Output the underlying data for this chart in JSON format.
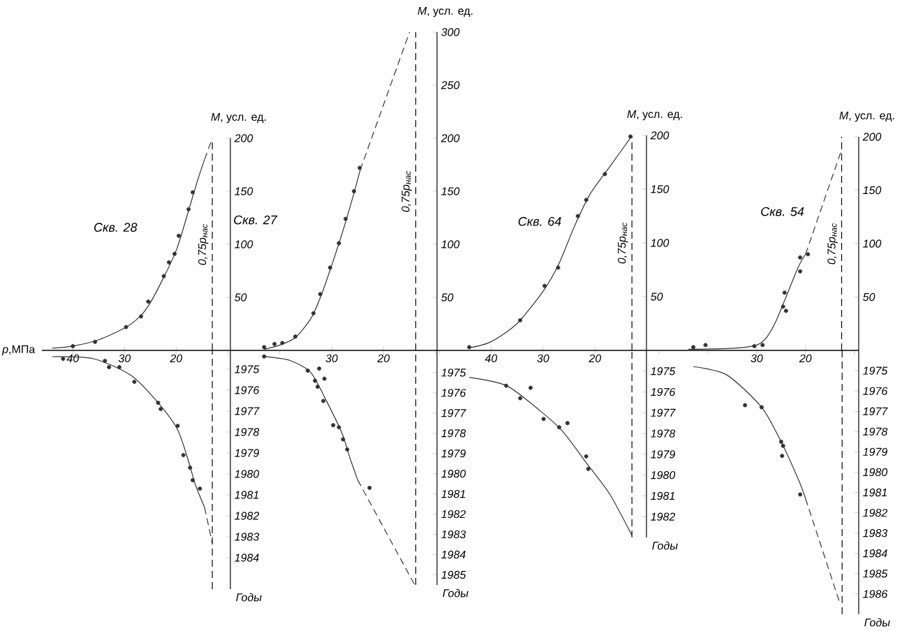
{
  "chart_data": [
    {
      "type": "line",
      "title": "Скв. 28",
      "xlabel": "*p*,МПа",
      "ylabel": "*M*, усл. ед.",
      "xlim": [
        46,
        9.5
      ],
      "xticks": [
        40,
        30,
        20
      ],
      "ylim": [
        0,
        200
      ],
      "yticks": [
        50,
        100,
        150,
        200
      ],
      "ref_lines": [
        {
          "axis": "x",
          "value": 13,
          "label": "0,75p$_{нас}$",
          "line_style": "dashed"
        }
      ],
      "series": [
        {
          "type": "scatter",
          "marker": "circle",
          "color": "#333333",
          "x": [
            40,
            35.7,
            29.7,
            26.8,
            25.4,
            22.4,
            21.4,
            20.3,
            19.5,
            17.6,
            16.8
          ],
          "values": [
            4,
            8,
            22,
            32,
            46,
            70,
            83,
            91,
            108,
            133,
            149
          ]
        },
        {
          "type": "line",
          "color": "#333333",
          "x": [
            44,
            40,
            35,
            30,
            27,
            25,
            22.5,
            20,
            18,
            16,
            14.5
          ],
          "values": [
            2,
            4,
            10,
            21,
            32,
            45,
            68,
            94,
            125,
            158,
            180
          ]
        },
        {
          "type": "line",
          "line_style": "dashed",
          "color": "#333333",
          "x": [
            14.5,
            13
          ],
          "values": [
            180,
            200
          ]
        }
      ]
    },
    {
      "type": "line",
      "title": "Скв. 27",
      "ylabel": "*M*, усл. ед.",
      "xlim": [
        49.5,
        9.7
      ],
      "xticks": [
        30,
        20
      ],
      "ylim": [
        0,
        300
      ],
      "yticks": [
        50,
        100,
        150,
        200,
        250,
        300
      ],
      "ref_lines": [
        {
          "axis": "x",
          "value": 13.8,
          "label": "0,75p$_{нас}$",
          "line_style": "dashed"
        }
      ],
      "series": [
        {
          "type": "scatter",
          "marker": "circle",
          "color": "#333333",
          "x": [
            43,
            41,
            39.5,
            37,
            33.5,
            32.2,
            30.3,
            28.6,
            27.3,
            25.7,
            24.6
          ],
          "values": [
            3,
            6,
            7,
            13,
            35,
            53,
            78,
            101,
            124,
            150,
            172
          ]
        },
        {
          "type": "line",
          "color": "#333333",
          "x": [
            43,
            40,
            37,
            34,
            32,
            30,
            28,
            26,
            24.5
          ],
          "values": [
            1,
            5,
            12,
            30,
            52,
            80,
            110,
            143,
            170
          ]
        },
        {
          "type": "line",
          "line_style": "dashed",
          "color": "#333333",
          "x": [
            24.5,
            15
          ],
          "values": [
            170,
            300
          ]
        }
      ]
    },
    {
      "type": "line",
      "title": "Скв. 64",
      "ylabel": "*M*, усл. ед.",
      "xlim": [
        50.4,
        10.1
      ],
      "xticks": [
        40,
        30,
        20
      ],
      "ylim": [
        0,
        200
      ],
      "yticks": [
        50,
        100,
        150,
        200
      ],
      "ref_lines": [
        {
          "axis": "x",
          "value": 12.9,
          "label": "0,75p$_{нас}$",
          "line_style": "dashed"
        }
      ],
      "series": [
        {
          "type": "scatter",
          "marker": "circle",
          "color": "#333333",
          "x": [
            44.2,
            34.4,
            29.7,
            27.1,
            23.3,
            21.7,
            18.1,
            13.2
          ],
          "values": [
            3,
            28,
            60,
            77,
            125,
            140,
            164,
            199
          ]
        },
        {
          "type": "line",
          "color": "#333333",
          "x": [
            44.5,
            40,
            35,
            30,
            27,
            24,
            21,
            17,
            13
          ],
          "values": [
            2,
            8,
            25,
            55,
            80,
            115,
            145,
            172,
            199
          ]
        }
      ]
    },
    {
      "type": "line",
      "title": "Скв. 54",
      "ylabel": "*M*, усл. ед.",
      "xlim": [
        52.6,
        9.1
      ],
      "xticks": [
        30,
        20
      ],
      "ylim": [
        0,
        200
      ],
      "yticks": [
        50,
        100,
        150,
        200
      ],
      "ref_lines": [
        {
          "axis": "x",
          "value": 12.6,
          "label": "0,75p$_{нас}$",
          "line_style": "dashed"
        }
      ],
      "series": [
        {
          "type": "scatter",
          "marker": "circle",
          "color": "#333333",
          "x": [
            43,
            40.5,
            30.5,
            28.8,
            24.6,
            24.3,
            24,
            21.1,
            21.1,
            19.5
          ],
          "values": [
            3,
            5,
            4,
            5,
            41,
            54,
            37,
            74,
            87,
            90
          ]
        },
        {
          "type": "line",
          "color": "#333333",
          "x": [
            44,
            35,
            30,
            28,
            26,
            24,
            21.5,
            20
          ],
          "values": [
            1,
            2,
            5,
            12,
            28,
            50,
            78,
            90
          ]
        },
        {
          "type": "line",
          "line_style": "dashed",
          "color": "#333333",
          "x": [
            20,
            12.6
          ],
          "values": [
            90,
            188
          ]
        }
      ]
    },
    {
      "type": "line",
      "ylabel": "Годы",
      "xlim": [
        46,
        9.5
      ],
      "ylim": [
        1985.5,
        1974.1
      ],
      "yticks": [
        1975,
        1976,
        1977,
        1978,
        1979,
        1980,
        1981,
        1982,
        1983,
        1984
      ],
      "tick_labels": "y",
      "ref_lines": [
        {
          "axis": "x",
          "value": 13,
          "line_style": "dashed"
        }
      ],
      "series": [
        {
          "type": "scatter",
          "marker": "circle",
          "color": "#333333",
          "x": [
            41.9,
            33.8,
            33,
            31,
            28.1,
            23.5,
            23,
            19.7,
            18.6,
            17.3,
            16.8,
            15.4
          ],
          "values": [
            1974.5,
            1974.6,
            1974.9,
            1974.9,
            1975.6,
            1976.6,
            1976.9,
            1977.7,
            1979.1,
            1979.7,
            1980.3,
            1980.7
          ]
        },
        {
          "type": "line",
          "color": "#333333",
          "x": [
            44,
            36,
            28.7,
            23.5,
            19.7,
            17.6,
            16.3,
            14.5
          ],
          "values": [
            1974.4,
            1974.5,
            1975.3,
            1976.6,
            1977.9,
            1979.4,
            1980.5,
            1981.6
          ]
        },
        {
          "type": "line",
          "line_style": "dashed",
          "color": "#333333",
          "x": [
            14.5,
            13
          ],
          "values": [
            1981.6,
            1983.3
          ]
        }
      ]
    },
    {
      "type": "line",
      "ylabel": "Годы",
      "xlim": [
        49.5,
        9.7
      ],
      "ylim": [
        1985.5,
        1973.9
      ],
      "yticks": [
        1975,
        1976,
        1977,
        1978,
        1979,
        1980,
        1981,
        1982,
        1983,
        1984,
        1985
      ],
      "tick_labels": "y",
      "ref_lines": [
        {
          "axis": "x",
          "value": 13.8,
          "line_style": "dashed"
        }
      ],
      "series": [
        {
          "type": "scatter",
          "marker": "circle",
          "color": "#333333",
          "x": [
            43,
            34.6,
            32.4,
            33.2,
            31.4,
            32.7,
            31.6,
            29.7,
            28.6,
            27.8,
            27,
            22.7
          ],
          "values": [
            1974.2,
            1974.9,
            1974.8,
            1975.4,
            1975.3,
            1975.7,
            1976.4,
            1977.6,
            1977.7,
            1978.3,
            1978.8,
            1980.7
          ]
        },
        {
          "type": "line",
          "color": "#333333",
          "x": [
            43,
            38,
            34,
            31,
            28,
            26.5,
            25
          ],
          "values": [
            1974.2,
            1974.4,
            1975,
            1976.4,
            1978,
            1979.2,
            1980.3
          ]
        },
        {
          "type": "line",
          "line_style": "dashed",
          "color": "#333333",
          "x": [
            25,
            14
          ],
          "values": [
            1980.3,
            1985.5
          ]
        }
      ]
    },
    {
      "type": "line",
      "ylabel": "Годы",
      "xlim": [
        50.4,
        10.1
      ],
      "ylim": [
        1983,
        1974
      ],
      "yticks": [
        1975,
        1976,
        1977,
        1978,
        1979,
        1980,
        1981,
        1982
      ],
      "tick_labels": "y",
      "ref_lines": [
        {
          "axis": "x",
          "value": 12.9,
          "line_style": "dashed"
        }
      ],
      "series": [
        {
          "type": "scatter",
          "marker": "circle",
          "color": "#333333",
          "x": [
            37.1,
            34.4,
            32.4,
            29.9,
            26.9,
            25.3,
            21.7,
            21.3
          ],
          "values": [
            1975.7,
            1976.3,
            1975.8,
            1977.3,
            1977.7,
            1977.5,
            1979.1,
            1979.7
          ]
        },
        {
          "type": "line",
          "color": "#333333",
          "x": [
            44.2,
            37,
            30.6,
            26.2,
            21.7,
            17.2,
            12.9
          ],
          "values": [
            1975.3,
            1975.7,
            1976.9,
            1977.9,
            1979.4,
            1980.9,
            1982.9
          ]
        }
      ]
    },
    {
      "type": "line",
      "ylabel": "Годы",
      "xlim": [
        52.6,
        9.1
      ],
      "ylim": [
        1987,
        1974
      ],
      "yticks": [
        1975,
        1976,
        1977,
        1978,
        1979,
        1980,
        1981,
        1982,
        1983,
        1984,
        1985,
        1986
      ],
      "tick_labels": "y",
      "ref_lines": [
        {
          "axis": "x",
          "value": 12.5,
          "line_style": "dashed"
        }
      ],
      "series": [
        {
          "type": "scatter",
          "marker": "circle",
          "color": "#333333",
          "x": [
            32.4,
            29,
            25,
            24.8,
            24.6,
            21.1
          ],
          "values": [
            1976.7,
            1976.8,
            1978.5,
            1979.2,
            1978.7,
            1981.1
          ]
        },
        {
          "type": "line",
          "color": "#333333",
          "x": [
            43,
            36.2,
            29,
            24.8,
            21.4,
            20
          ],
          "values": [
            1974.8,
            1975.2,
            1976.8,
            1978.6,
            1980.4,
            1981.3
          ]
        },
        {
          "type": "line",
          "line_style": "dashed",
          "color": "#333333",
          "x": [
            20,
            12.9
          ],
          "values": [
            1981.3,
            1986.5
          ]
        }
      ]
    }
  ]
}
